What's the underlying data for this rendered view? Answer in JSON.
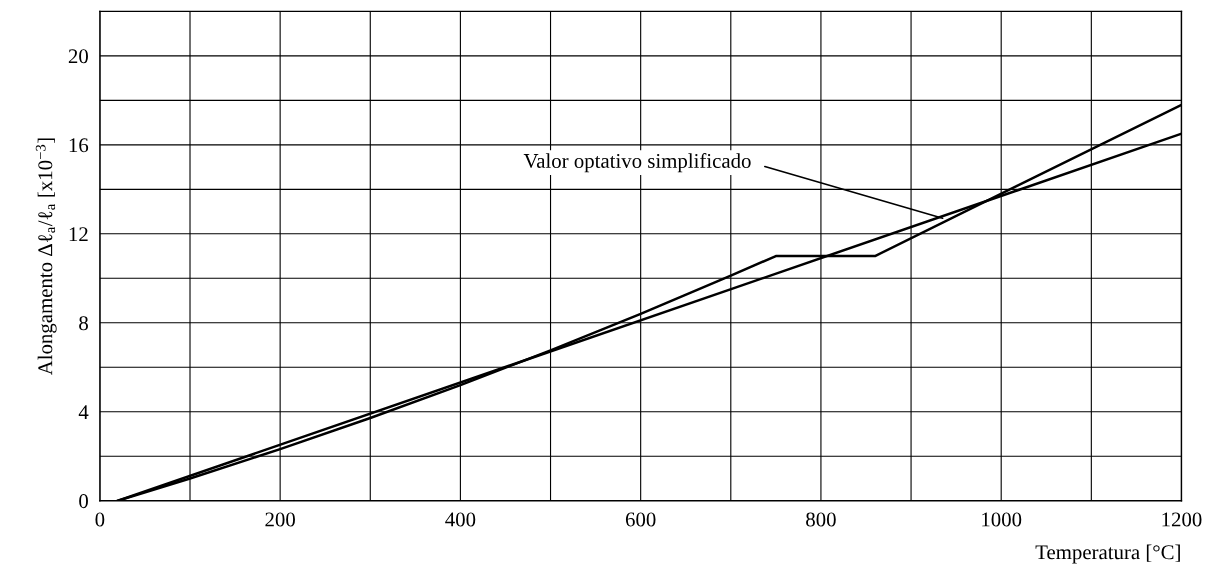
{
  "chart_data": {
    "type": "line",
    "xlabel": "Temperatura [°C]",
    "ylabel": "Alongamento Δℓ$_{a}$/ℓ$_{a}$ [x10$^{−3}$]",
    "series": [
      {
        "color": "#000000",
        "x": [
          20,
          100,
          200,
          300,
          400,
          500,
          600,
          700,
          750,
          860,
          1200
        ],
        "values": [
          0,
          1.0,
          2.32,
          3.72,
          5.2,
          6.76,
          8.4,
          10.12,
          11.0,
          11.0,
          17.8
        ]
      },
      {
        "color": "#000000",
        "x": [
          20,
          1200
        ],
        "values": [
          0,
          16.5
        ]
      }
    ],
    "annotations": [
      {
        "text": "Valor optativo simplificado",
        "x": 935,
        "y": 12.7
      }
    ],
    "xlim": [
      0,
      1200
    ],
    "xticks": [
      0,
      {
        "value": 100,
        "label": null
      },
      200,
      {
        "value": 300,
        "label": null
      },
      400,
      {
        "value": 500,
        "label": null
      },
      600,
      {
        "value": 700,
        "label": null
      },
      800,
      {
        "value": 900,
        "label": null
      },
      1000,
      {
        "value": 1100,
        "label": null
      },
      1200
    ],
    "ylim": [
      0,
      22
    ],
    "yticks": [
      0,
      {
        "value": 2,
        "label": null
      },
      4,
      {
        "value": 6,
        "label": null
      },
      8,
      {
        "value": 10,
        "label": null
      },
      12,
      {
        "value": 14,
        "label": null
      },
      16,
      {
        "value": 18,
        "label": null
      },
      20
    ],
    "grid": true,
    "marker": "none",
    "line_style": "solid",
    "legend": false
  }
}
